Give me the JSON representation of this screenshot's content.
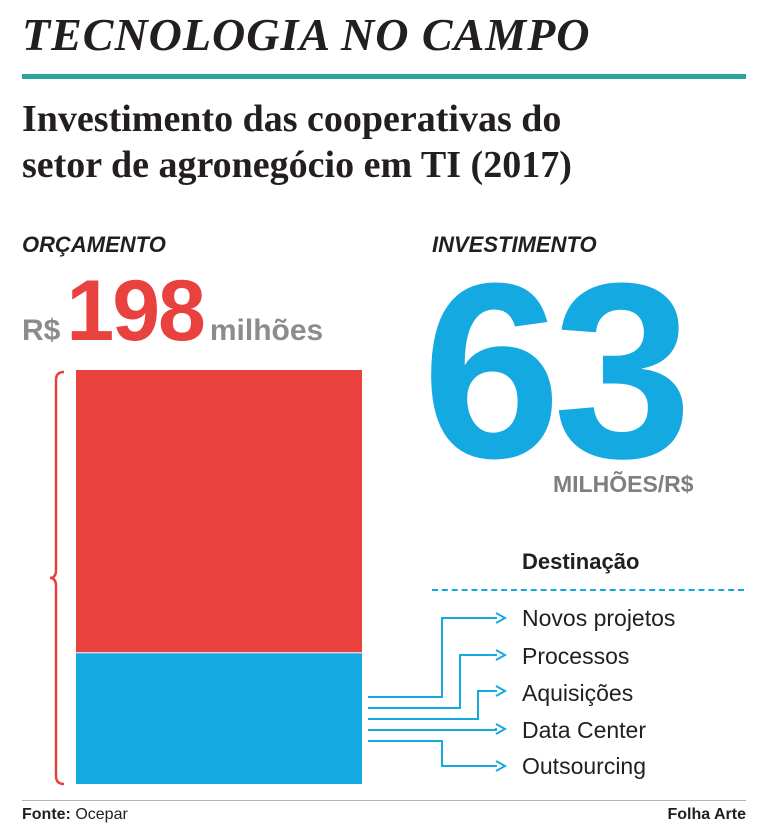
{
  "section": "TECNOLOGIA NO CAMPO",
  "title_lines": [
    "Investimento das cooperativas do",
    "setor de agronegócio em TI (2017)"
  ],
  "budget": {
    "label": "ORÇAMENTO",
    "currency": "R$",
    "value": "198",
    "unit": "milhões"
  },
  "investment": {
    "label": "INVESTIMENTO",
    "value": "63",
    "unit": "MILHÕES/R$"
  },
  "destination": {
    "title": "Destinação",
    "items": [
      "Novos projetos",
      "Processos",
      "Aquisições",
      "Data Center",
      "Outsourcing"
    ]
  },
  "footer": {
    "source_label": "Fonte:",
    "source_value": "Ocepar",
    "credit": "Folha Arte"
  },
  "colors": {
    "budget": "#e8413e",
    "investment": "#14a9e1",
    "rule": "#2aa59b"
  },
  "chart_data": {
    "type": "bar",
    "stacked": true,
    "total": 198,
    "series": [
      {
        "name": "INVESTIMENTO",
        "value": 63
      },
      {
        "value": 135
      }
    ]
  }
}
